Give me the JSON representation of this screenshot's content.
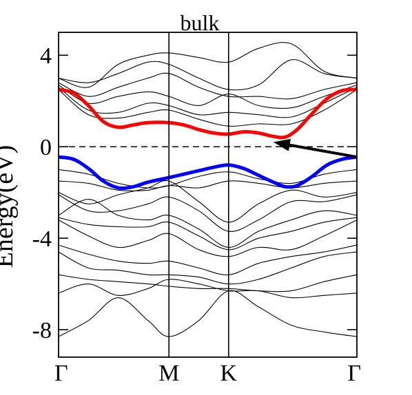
{
  "chart_data": {
    "type": "line",
    "title": "bulk",
    "ylabel": "Energy(eV)",
    "xlabel": "",
    "ylim": [
      -9.2,
      5
    ],
    "y_ticks": [
      4,
      0,
      -4,
      -8
    ],
    "y_tick_labels": [
      "4",
      "0",
      "-4",
      "-8"
    ],
    "k_points": [
      "Γ",
      "M",
      "K",
      "Γ"
    ],
    "k_point_positions": [
      0,
      0.37,
      0.57,
      1.0
    ],
    "fermi_level": 0,
    "grid": false,
    "legend": "none",
    "annotations": [
      {
        "type": "arrow",
        "from": [
          1.0,
          -0.45
        ],
        "to": [
          0.72,
          0.2
        ]
      }
    ],
    "series": [
      {
        "color": "#ff0000",
        "role": "conduction band minimum",
        "x": [
          0,
          0.05,
          0.1,
          0.15,
          0.2,
          0.25,
          0.3,
          0.37,
          0.42,
          0.47,
          0.52,
          0.57,
          0.62,
          0.67,
          0.72,
          0.76,
          0.8,
          0.85,
          0.9,
          0.95,
          1.0
        ],
        "y": [
          2.5,
          2.35,
          1.8,
          1.1,
          0.85,
          0.95,
          1.05,
          1.05,
          0.95,
          0.75,
          0.6,
          0.55,
          0.65,
          0.6,
          0.45,
          0.42,
          0.75,
          1.45,
          2.1,
          2.45,
          2.5
        ]
      },
      {
        "color": "#0000ff",
        "role": "valence band maximum",
        "x": [
          0,
          0.05,
          0.1,
          0.15,
          0.2,
          0.25,
          0.3,
          0.37,
          0.42,
          0.47,
          0.52,
          0.57,
          0.62,
          0.67,
          0.72,
          0.76,
          0.8,
          0.85,
          0.9,
          0.95,
          1.0
        ],
        "y": [
          -0.45,
          -0.55,
          -0.95,
          -1.5,
          -1.8,
          -1.75,
          -1.55,
          -1.35,
          -1.2,
          -1.05,
          -0.9,
          -0.8,
          -0.95,
          -1.25,
          -1.55,
          -1.75,
          -1.7,
          -1.3,
          -0.8,
          -0.55,
          -0.45
        ]
      },
      {
        "color": "#000000",
        "x": [
          0,
          0.1,
          0.2,
          0.3,
          0.37,
          0.47,
          0.57,
          0.67,
          0.78,
          0.89,
          1.0
        ],
        "y": [
          3.0,
          2.6,
          3.6,
          4.0,
          4.1,
          3.9,
          3.7,
          4.3,
          4.5,
          3.3,
          3.0
        ]
      },
      {
        "color": "#000000",
        "x": [
          0,
          0.1,
          0.2,
          0.3,
          0.37,
          0.47,
          0.57,
          0.67,
          0.78,
          0.89,
          1.0
        ],
        "y": [
          3.0,
          2.8,
          3.2,
          3.7,
          3.6,
          3.0,
          2.5,
          2.7,
          3.8,
          3.2,
          3.0
        ]
      },
      {
        "color": "#000000",
        "x": [
          0,
          0.1,
          0.2,
          0.3,
          0.37,
          0.47,
          0.57,
          0.67,
          0.78,
          0.89,
          1.0
        ],
        "y": [
          2.8,
          2.2,
          2.6,
          3.0,
          3.2,
          2.6,
          2.2,
          2.2,
          2.1,
          2.5,
          2.8
        ]
      },
      {
        "color": "#000000",
        "x": [
          0,
          0.1,
          0.2,
          0.3,
          0.37,
          0.47,
          0.57,
          0.67,
          0.78,
          0.89,
          1.0
        ],
        "y": [
          2.7,
          1.9,
          2.2,
          2.4,
          2.2,
          1.8,
          2.3,
          1.8,
          1.7,
          2.2,
          2.7
        ]
      },
      {
        "color": "#000000",
        "x": [
          0,
          0.1,
          0.2,
          0.3,
          0.37,
          0.47,
          0.57,
          0.67,
          0.78,
          0.89,
          1.0
        ],
        "y": [
          2.6,
          1.6,
          1.5,
          1.9,
          1.8,
          1.4,
          1.5,
          1.4,
          1.3,
          1.9,
          2.6
        ]
      },
      {
        "color": "#000000",
        "x": [
          0,
          0.1,
          0.2,
          0.3,
          0.37,
          0.47,
          0.57,
          0.67,
          0.78,
          0.89,
          1.0
        ],
        "y": [
          2.5,
          1.4,
          1.25,
          1.5,
          1.6,
          1.2,
          0.9,
          1.0,
          1.0,
          1.6,
          2.5
        ]
      },
      {
        "color": "#000000",
        "x": [
          0,
          0.1,
          0.2,
          0.3,
          0.37,
          0.47,
          0.57,
          0.67,
          0.78,
          0.89,
          1.0
        ],
        "y": [
          -1.0,
          -1.2,
          -1.6,
          -1.8,
          -1.7,
          -1.3,
          -1.1,
          -1.4,
          -1.6,
          -1.2,
          -1.0
        ]
      },
      {
        "color": "#000000",
        "x": [
          0,
          0.1,
          0.2,
          0.3,
          0.37,
          0.47,
          0.57,
          0.67,
          0.78,
          0.89,
          1.0
        ],
        "y": [
          -1.5,
          -1.6,
          -1.9,
          -1.9,
          -1.7,
          -1.8,
          -1.5,
          -1.6,
          -1.8,
          -1.6,
          -1.5
        ]
      },
      {
        "color": "#000000",
        "x": [
          0,
          0.1,
          0.2,
          0.3,
          0.37,
          0.47,
          0.57,
          0.67,
          0.78,
          0.89,
          1.0
        ],
        "y": [
          -2.0,
          -2.5,
          -2.1,
          -1.8,
          -1.5,
          -2.4,
          -3.3,
          -2.5,
          -1.9,
          -2.2,
          -2.0
        ]
      },
      {
        "color": "#000000",
        "x": [
          0,
          0.1,
          0.2,
          0.3,
          0.37,
          0.47,
          0.57,
          0.67,
          0.78,
          0.89,
          1.0
        ],
        "y": [
          -2.1,
          -2.8,
          -2.8,
          -2.5,
          -2.2,
          -2.8,
          -3.7,
          -3.2,
          -2.4,
          -2.4,
          -2.1
        ]
      },
      {
        "color": "#000000",
        "x": [
          0,
          0.1,
          0.2,
          0.3,
          0.37,
          0.47,
          0.57,
          0.67,
          0.78,
          0.89,
          1.0
        ],
        "y": [
          -3.0,
          -2.3,
          -3.0,
          -3.2,
          -3.0,
          -3.6,
          -4.4,
          -3.7,
          -3.2,
          -2.8,
          -3.0
        ]
      },
      {
        "color": "#000000",
        "x": [
          0,
          0.1,
          0.2,
          0.3,
          0.37,
          0.47,
          0.57,
          0.67,
          0.78,
          0.89,
          1.0
        ],
        "y": [
          -3.1,
          -3.4,
          -3.5,
          -3.5,
          -3.3,
          -3.9,
          -4.5,
          -4.0,
          -3.7,
          -3.3,
          -3.1
        ]
      },
      {
        "color": "#000000",
        "x": [
          0,
          0.1,
          0.2,
          0.3,
          0.37,
          0.47,
          0.57,
          0.67,
          0.78,
          0.89,
          1.0
        ],
        "y": [
          -3.2,
          -3.9,
          -4.4,
          -4.1,
          -3.8,
          -4.5,
          -4.8,
          -4.4,
          -4.5,
          -3.9,
          -3.2
        ]
      },
      {
        "color": "#000000",
        "x": [
          0,
          0.1,
          0.2,
          0.3,
          0.37,
          0.47,
          0.57,
          0.67,
          0.78,
          0.89,
          1.0
        ],
        "y": [
          -4.3,
          -4.7,
          -5.0,
          -5.1,
          -5.0,
          -5.3,
          -5.6,
          -5.1,
          -4.8,
          -4.6,
          -4.3
        ]
      },
      {
        "color": "#000000",
        "x": [
          0,
          0.1,
          0.2,
          0.3,
          0.37,
          0.47,
          0.57,
          0.67,
          0.78,
          0.89,
          1.0
        ],
        "y": [
          -4.6,
          -5.3,
          -5.4,
          -5.6,
          -5.6,
          -5.7,
          -6.0,
          -5.8,
          -5.3,
          -4.8,
          -4.6
        ]
      },
      {
        "color": "#000000",
        "x": [
          0,
          0.1,
          0.2,
          0.3,
          0.37,
          0.47,
          0.57,
          0.67,
          0.78,
          0.89,
          1.0
        ],
        "y": [
          -5.6,
          -5.8,
          -5.9,
          -6.0,
          -6.1,
          -6.2,
          -6.2,
          -6.3,
          -6.3,
          -5.9,
          -5.6
        ]
      },
      {
        "color": "#000000",
        "x": [
          0,
          0.1,
          0.2,
          0.3,
          0.37,
          0.47,
          0.57,
          0.67,
          0.78,
          0.89,
          1.0
        ],
        "y": [
          -6.4,
          -6.0,
          -6.5,
          -6.2,
          -5.8,
          -6.0,
          -6.3,
          -6.3,
          -6.6,
          -6.5,
          -6.4
        ]
      },
      {
        "color": "#000000",
        "x": [
          0,
          0.1,
          0.2,
          0.3,
          0.37,
          0.47,
          0.57,
          0.67,
          0.78,
          0.89,
          1.0
        ],
        "y": [
          -8.3,
          -7.6,
          -6.6,
          -7.6,
          -8.3,
          -7.6,
          -6.3,
          -7.0,
          -7.8,
          -8.1,
          -8.3
        ]
      }
    ]
  }
}
